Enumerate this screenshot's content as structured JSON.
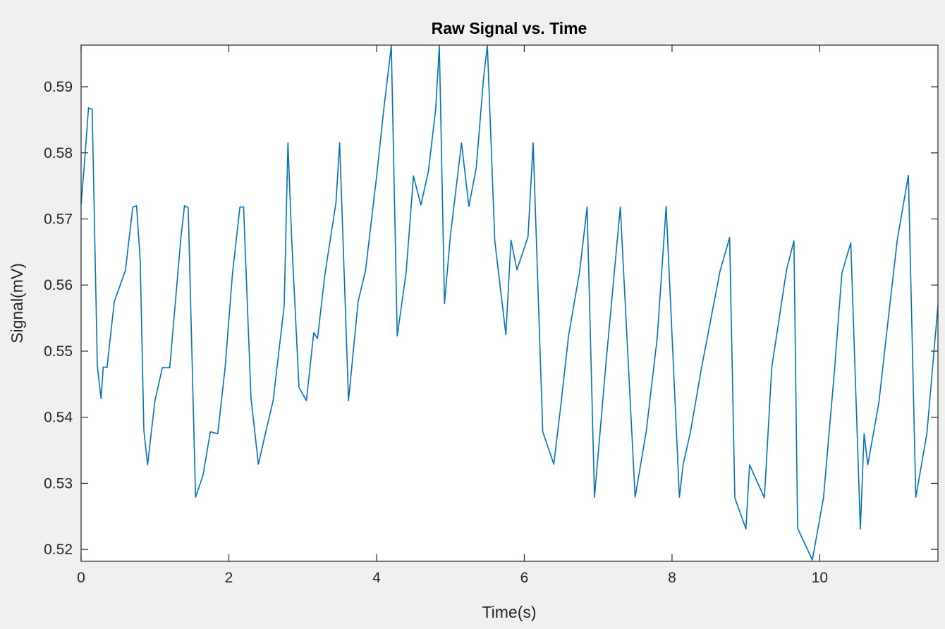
{
  "chart_data": {
    "type": "line",
    "title": "Raw Signal vs. Time",
    "xlabel": "Time(s)",
    "ylabel": "Signal(mV)",
    "xlim": [
      0,
      11.6
    ],
    "ylim": [
      0.5182,
      0.5963
    ],
    "xticks": [
      0,
      2,
      4,
      6,
      8,
      10
    ],
    "yticks": [
      0.52,
      0.53,
      0.54,
      0.55,
      0.56,
      0.57,
      0.58,
      0.59
    ],
    "xtick_labels": [
      "0",
      "2",
      "4",
      "6",
      "8",
      "10"
    ],
    "ytick_labels": [
      "0.52",
      "0.53",
      "0.54",
      "0.55",
      "0.56",
      "0.57",
      "0.58",
      "0.59"
    ],
    "grid": false,
    "line_color": "#0072bd",
    "series": [
      {
        "x": [
          0,
          0.05,
          0.1,
          0.15,
          0.22,
          0.27,
          0.3,
          0.35,
          0.45,
          0.6,
          0.7,
          0.75,
          0.8,
          0.85,
          0.9,
          1.0,
          1.1,
          1.2,
          1.35,
          1.4,
          1.45,
          1.55,
          1.65,
          1.75,
          1.85,
          1.95,
          2.05,
          2.15,
          2.2,
          2.3,
          2.4,
          2.5,
          2.6,
          2.75,
          2.8,
          2.85,
          2.95,
          3.05,
          3.15,
          3.2,
          3.3,
          3.45,
          3.5,
          3.55,
          3.62,
          3.75,
          3.85,
          4.0,
          4.1,
          4.2,
          4.28,
          4.4,
          4.5,
          4.6,
          4.7,
          4.8,
          4.85,
          4.92,
          5.0,
          5.15,
          5.25,
          5.35,
          5.45,
          5.5,
          5.6,
          5.75,
          5.82,
          5.9,
          6.05,
          6.12,
          6.25,
          6.4,
          6.5,
          6.6,
          6.75,
          6.85,
          6.95,
          7.1,
          7.3,
          7.5,
          7.65,
          7.8,
          7.92,
          8.1,
          8.15,
          8.25,
          8.4,
          8.65,
          8.78,
          8.85,
          9.0,
          9.05,
          9.25,
          9.35,
          9.55,
          9.65,
          9.7,
          9.9,
          10.05,
          10.2,
          10.3,
          10.42,
          10.55,
          10.6,
          10.65,
          10.8,
          10.95,
          11.05,
          11.2,
          11.3,
          11.45,
          11.6
        ],
        "y": [
          0.5722,
          0.579,
          0.5868,
          0.5866,
          0.5478,
          0.5428,
          0.5476,
          0.5475,
          0.5575,
          0.5622,
          0.5718,
          0.572,
          0.5638,
          0.538,
          0.5328,
          0.5425,
          0.5475,
          0.5475,
          0.567,
          0.572,
          0.5717,
          0.5279,
          0.5312,
          0.5378,
          0.5375,
          0.5475,
          0.5618,
          0.5718,
          0.5718,
          0.5429,
          0.5329,
          0.5378,
          0.5425,
          0.5569,
          0.5815,
          0.5672,
          0.5445,
          0.5425,
          0.5528,
          0.5519,
          0.5615,
          0.5725,
          0.5815,
          0.5656,
          0.5425,
          0.5575,
          0.5622,
          0.5764,
          0.5868,
          0.5962,
          0.5523,
          0.5619,
          0.5765,
          0.5721,
          0.5771,
          0.5866,
          0.5962,
          0.5572,
          0.5675,
          0.5815,
          0.5719,
          0.5778,
          0.5915,
          0.5962,
          0.5667,
          0.5525,
          0.5668,
          0.5623,
          0.5673,
          0.5815,
          0.5378,
          0.5329,
          0.5423,
          0.5524,
          0.5621,
          0.5718,
          0.5279,
          0.5475,
          0.5718,
          0.5279,
          0.5378,
          0.5521,
          0.5719,
          0.5279,
          0.5328,
          0.5378,
          0.5475,
          0.5621,
          0.5672,
          0.5278,
          0.5231,
          0.5328,
          0.5278,
          0.5475,
          0.5623,
          0.5667,
          0.5232,
          0.5184,
          0.5278,
          0.5472,
          0.5618,
          0.5664,
          0.5231,
          0.5375,
          0.5328,
          0.5422,
          0.5571,
          0.5669,
          0.5766,
          0.5279,
          0.5375,
          0.5569
        ]
      }
    ]
  }
}
